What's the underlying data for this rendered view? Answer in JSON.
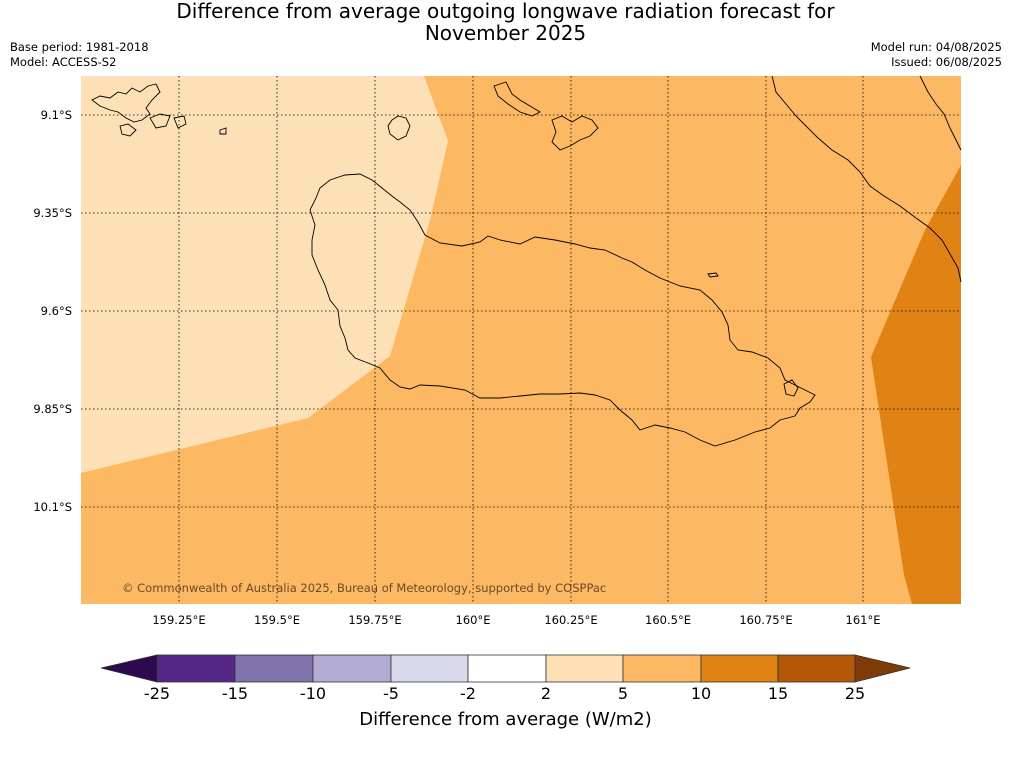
{
  "title": {
    "line1": "Difference from average outgoing longwave radiation forecast for",
    "line2": "November 2025"
  },
  "meta": {
    "base_period": "Base period: 1981-2018",
    "model": "Model: ACCESS-S2",
    "model_run": "Model run: 04/08/2025",
    "issued": "Issued: 06/08/2025"
  },
  "axes": {
    "latitudes": [
      "9.1°S",
      "9.35°S",
      "9.6°S",
      "9.85°S",
      "10.1°S"
    ],
    "longitudes": [
      "159.25°E",
      "159.5°E",
      "159.75°E",
      "160°E",
      "160.25°E",
      "160.5°E",
      "160.75°E",
      "161°E"
    ]
  },
  "copyright": "© Commonwealth of Australia 2025, Bureau of Meteorology, supported by COSPPac",
  "colorbar": {
    "label": "Difference from average (W/m2)",
    "ticks": [
      "-25",
      "-15",
      "-10",
      "-5",
      "-2",
      "2",
      "5",
      "10",
      "15",
      "25"
    ],
    "colors": [
      "#2d0a4e",
      "#542788",
      "#8073ac",
      "#b2abd2",
      "#d8daeb",
      "#ffffff",
      "#fee0b6",
      "#fdb863",
      "#e08214",
      "#b35806",
      "#7f3b08"
    ]
  },
  "map": {
    "fill_colors": {
      "band_2_5": "#fee0b6",
      "band_5_10": "#fdb863",
      "band_10_15": "#e08214"
    }
  }
}
